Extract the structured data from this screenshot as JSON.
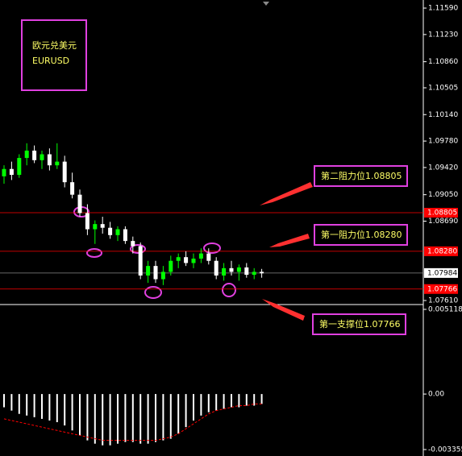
{
  "chart_data": {
    "type": "candlestick",
    "title": "欧元兑美元",
    "subtitle": "EURUSD",
    "up_color": "#00ff00",
    "down_color": "#ffffff",
    "open": [
      1.093,
      1.094,
      1.0932,
      1.0955,
      1.0965,
      1.0952,
      1.096,
      1.0945,
      1.095,
      1.0922,
      1.0905,
      1.088,
      1.0858,
      1.0865,
      1.086,
      1.085,
      1.0858,
      1.0842,
      1.0835,
      1.0795,
      1.0808,
      1.079,
      1.08,
      1.0815,
      1.082,
      1.0812,
      1.0818,
      1.0825,
      1.0815,
      1.0795,
      1.0805,
      1.08,
      1.0806,
      1.0796,
      1.08
    ],
    "high": [
      1.0945,
      1.095,
      1.096,
      1.0975,
      1.0972,
      1.0965,
      1.0968,
      1.0975,
      1.0958,
      1.0935,
      1.0912,
      1.0892,
      1.087,
      1.0875,
      1.0868,
      1.0862,
      1.0862,
      1.0848,
      1.084,
      1.0815,
      1.0815,
      1.0808,
      1.0822,
      1.0825,
      1.0828,
      1.0825,
      1.0832,
      1.0832,
      1.082,
      1.0812,
      1.0815,
      1.081,
      1.0812,
      1.0805,
      1.0804
    ],
    "low": [
      1.092,
      1.0925,
      1.0928,
      1.0945,
      1.0948,
      1.094,
      1.0938,
      1.094,
      1.0915,
      1.09,
      1.0875,
      1.085,
      1.0838,
      1.0852,
      1.0845,
      1.0842,
      1.0838,
      1.0825,
      1.079,
      1.0785,
      1.0785,
      1.0782,
      1.0795,
      1.0805,
      1.0808,
      1.0805,
      1.0812,
      1.081,
      1.079,
      1.0788,
      1.0795,
      1.0788,
      1.0792,
      1.079,
      1.0792
    ],
    "close": [
      1.094,
      1.0932,
      1.0955,
      1.0965,
      1.0952,
      1.096,
      1.0945,
      1.095,
      1.0922,
      1.0905,
      1.088,
      1.0858,
      1.0865,
      1.086,
      1.085,
      1.0858,
      1.0842,
      1.0835,
      1.0795,
      1.0808,
      1.079,
      1.08,
      1.0815,
      1.082,
      1.0812,
      1.0818,
      1.0825,
      1.0815,
      1.0795,
      1.0805,
      1.08,
      1.0806,
      1.0796,
      1.08,
      1.0798
    ],
    "ylim": [
      1.07555,
      1.117
    ],
    "yticks": [
      {
        "value": 1.1159,
        "label": "1.11590"
      },
      {
        "value": 1.1123,
        "label": "1.11230"
      },
      {
        "value": 1.1086,
        "label": "1.10860"
      },
      {
        "value": 1.10505,
        "label": "1.10505"
      },
      {
        "value": 1.1014,
        "label": "1.10140"
      },
      {
        "value": 1.0978,
        "label": "1.09780"
      },
      {
        "value": 1.0942,
        "label": "1.09420"
      },
      {
        "value": 1.0905,
        "label": "1.09050"
      },
      {
        "value": 1.0869,
        "label": "1.08690"
      },
      {
        "value": 1.0761,
        "label": "1.07610"
      }
    ],
    "levels": [
      {
        "value": 1.08805,
        "label": "1.08805",
        "color": "#ff0000"
      },
      {
        "value": 1.0828,
        "label": "1.08280",
        "color": "#ff0000"
      },
      {
        "value": 1.07984,
        "label": "1.07984",
        "color": "#ffffff"
      },
      {
        "value": 1.07766,
        "label": "1.07766",
        "color": "#ff0000"
      }
    ],
    "annotations": [
      "第二阻力位1.08805",
      "第一阻力位1.08280",
      "第一支撑位1.07766"
    ],
    "macd": {
      "histogram": [
        -0.0008,
        -0.001,
        -0.0012,
        -0.0013,
        -0.0014,
        -0.0015,
        -0.0016,
        -0.0017,
        -0.0019,
        -0.0022,
        -0.0025,
        -0.0028,
        -0.003,
        -0.0031,
        -0.0031,
        -0.003,
        -0.0029,
        -0.0029,
        -0.003,
        -0.003,
        -0.0029,
        -0.0028,
        -0.0027,
        -0.0024,
        -0.002,
        -0.0016,
        -0.0013,
        -0.0011,
        -0.001,
        -0.0009,
        -0.0008,
        -0.0008,
        -0.0007,
        -0.0007,
        -0.0006
      ],
      "signal": [
        -0.0015,
        -0.0016,
        -0.0017,
        -0.0018,
        -0.0019,
        -0.002,
        -0.0021,
        -0.0022,
        -0.0023,
        -0.0024,
        -0.0025,
        -0.0026,
        -0.0027,
        -0.0028,
        -0.0028,
        -0.0028,
        -0.0028,
        -0.0028,
        -0.0028,
        -0.0028,
        -0.0028,
        -0.0027,
        -0.0026,
        -0.0024,
        -0.0021,
        -0.0018,
        -0.0015,
        -0.0012,
        -0.001,
        -0.0009,
        -0.0008,
        -0.0007,
        -0.0007,
        -0.0006,
        -0.0006
      ],
      "hist_color": "#ffffff",
      "signal_color": "#ff0000",
      "ylim": [
        -0.003745,
        0.00541
      ],
      "yticks": [
        0.005118,
        {
          "value": 0,
          "label": "0.00"
        },
        -0.003355
      ]
    }
  }
}
